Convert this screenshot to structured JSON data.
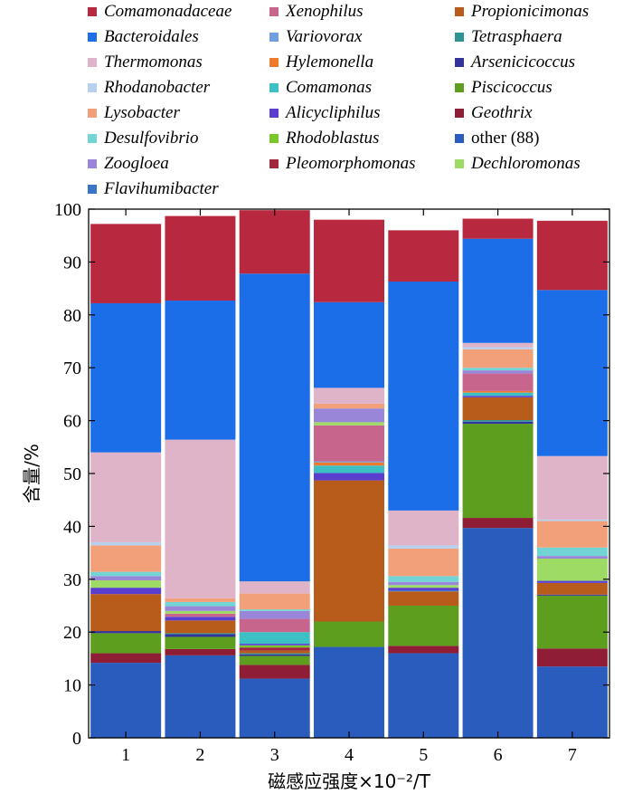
{
  "chart_data": {
    "type": "bar",
    "stacked": true,
    "categories": [
      "1",
      "2",
      "3",
      "4",
      "5",
      "6",
      "7"
    ],
    "xlabel": "磁感应强度×10⁻²/T",
    "ylabel": "含量/%",
    "ylim": [
      0,
      100
    ],
    "yticks": [
      0,
      10,
      20,
      30,
      40,
      50,
      60,
      70,
      80,
      90,
      100
    ],
    "grid": false,
    "legend_position": "top",
    "series": [
      {
        "name": "other (88)",
        "color": "#2a5cbd",
        "values": [
          14.2,
          15.6,
          11.2,
          17.2,
          16.0,
          39.7,
          13.5
        ]
      },
      {
        "name": "Geothrix",
        "color": "#8e1d35",
        "values": [
          1.8,
          1.2,
          2.6,
          0,
          1.4,
          1.9,
          3.4
        ]
      },
      {
        "name": "Piscicoccus",
        "color": "#5d9e1e",
        "values": [
          3.8,
          2.3,
          1.7,
          4.8,
          7.6,
          17.8,
          10.0
        ]
      },
      {
        "name": "Arsenicicoccus",
        "color": "#33339b",
        "values": [
          0.4,
          0.5,
          0.3,
          0,
          0,
          0.4,
          0.2
        ]
      },
      {
        "name": "Tetrasphaera",
        "color": "#2e9393",
        "values": [
          0,
          0.2,
          0.2,
          0,
          0,
          0.3,
          0
        ]
      },
      {
        "name": "Propionicimonas",
        "color": "#b85c1b",
        "values": [
          7.0,
          2.4,
          0.5,
          26.7,
          2.7,
          4.3,
          2.2
        ]
      },
      {
        "name": "Flavihumibacter",
        "color": "#3a76c8",
        "values": [
          0,
          0,
          0,
          0,
          0.2,
          0,
          0
        ]
      },
      {
        "name": "Pleomorphomonas",
        "color": "#a0283c",
        "values": [
          0,
          0,
          0.6,
          0,
          0,
          0,
          0
        ]
      },
      {
        "name": "Rhodoblastus",
        "color": "#7ac62b",
        "values": [
          0,
          0,
          0.4,
          0,
          0,
          0,
          0
        ]
      },
      {
        "name": "Alicycliphilus",
        "color": "#5a3fcf",
        "values": [
          1.2,
          0.7,
          0.3,
          1.4,
          0.5,
          0.3,
          0.4
        ]
      },
      {
        "name": "Comamonas",
        "color": "#3cc0c4",
        "values": [
          0,
          0,
          2.2,
          1.4,
          0,
          0.6,
          0
        ]
      },
      {
        "name": "Hylemonella",
        "color": "#ee7a2e",
        "values": [
          0,
          0,
          0,
          0.6,
          0,
          0.3,
          0
        ]
      },
      {
        "name": "Variovorax",
        "color": "#6f9fdf",
        "values": [
          0,
          0,
          0,
          0.2,
          0,
          0,
          0
        ]
      },
      {
        "name": "Xenophilus",
        "color": "#c8658c",
        "values": [
          0,
          0.6,
          2.5,
          6.8,
          0,
          3.3,
          0
        ]
      },
      {
        "name": "Dechloromonas",
        "color": "#9edb64",
        "values": [
          1.4,
          0.5,
          0,
          0.6,
          0.5,
          0,
          4.2
        ]
      },
      {
        "name": "Zoogloea",
        "color": "#9a86d8",
        "values": [
          0.8,
          0.9,
          1.5,
          2.6,
          0.6,
          0.6,
          0.5
        ]
      },
      {
        "name": "Desulfovibrio",
        "color": "#72d4d4",
        "values": [
          0.8,
          0.8,
          0.3,
          0,
          1.1,
          0.5,
          1.6
        ]
      },
      {
        "name": "Lysobacter",
        "color": "#f2a07a",
        "values": [
          5.0,
          0.7,
          3.0,
          0.9,
          5.2,
          3.5,
          5.0
        ]
      },
      {
        "name": "Rhodanobacter",
        "color": "#b6d0ee",
        "values": [
          0.6,
          0,
          0,
          0,
          0.6,
          0.4,
          0.3
        ]
      },
      {
        "name": "Thermomonas",
        "color": "#dfb3c8",
        "values": [
          17.0,
          30.0,
          2.3,
          3.0,
          6.6,
          0.8,
          12.0
        ]
      },
      {
        "name": "Bacteroidales",
        "color": "#1b6de8",
        "values": [
          28.2,
          26.3,
          58.2,
          16.2,
          43.3,
          19.7,
          31.4
        ]
      },
      {
        "name": "Comamonadaceae",
        "color": "#b8293f",
        "values": [
          15.0,
          16.0,
          12.0,
          15.6,
          9.7,
          3.8,
          13.1
        ]
      }
    ],
    "legend": [
      {
        "name": "Comamonadaceae",
        "color": "#b8293f",
        "italic": true
      },
      {
        "name": "Xenophilus",
        "color": "#c8658c",
        "italic": true
      },
      {
        "name": "Propionicimonas",
        "color": "#b85c1b",
        "italic": true
      },
      {
        "name": "Bacteroidales",
        "color": "#1b6de8",
        "italic": true
      },
      {
        "name": "Variovorax",
        "color": "#6f9fdf",
        "italic": true
      },
      {
        "name": "Tetrasphaera",
        "color": "#2e9393",
        "italic": true
      },
      {
        "name": "Thermomonas",
        "color": "#dfb3c8",
        "italic": true
      },
      {
        "name": "Hylemonella",
        "color": "#ee7a2e",
        "italic": true
      },
      {
        "name": "Arsenicicoccus",
        "color": "#33339b",
        "italic": true
      },
      {
        "name": "Rhodanobacter",
        "color": "#b6d0ee",
        "italic": true
      },
      {
        "name": "Comamonas",
        "color": "#3cc0c4",
        "italic": true
      },
      {
        "name": "Piscicoccus",
        "color": "#5d9e1e",
        "italic": true
      },
      {
        "name": "Lysobacter",
        "color": "#f2a07a",
        "italic": true
      },
      {
        "name": "Alicycliphilus",
        "color": "#5a3fcf",
        "italic": true
      },
      {
        "name": "Geothrix",
        "color": "#8e1d35",
        "italic": true
      },
      {
        "name": "Desulfovibrio",
        "color": "#72d4d4",
        "italic": true
      },
      {
        "name": "Rhodoblastus",
        "color": "#7ac62b",
        "italic": true
      },
      {
        "name": "other (88)",
        "color": "#2a5cbd",
        "italic": false
      },
      {
        "name": "Zoogloea",
        "color": "#9a86d8",
        "italic": true
      },
      {
        "name": "Pleomorphomonas",
        "color": "#a0283c",
        "italic": true
      },
      {
        "name": "Dechloromonas",
        "color": "#9edb64",
        "italic": true
      },
      {
        "name": "Flavihumibacter",
        "color": "#3a76c8",
        "italic": true
      }
    ]
  }
}
